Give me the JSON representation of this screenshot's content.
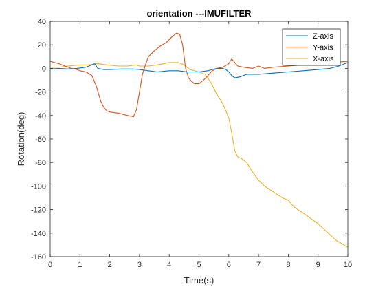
{
  "chart_data": {
    "type": "line",
    "title": "orientation ---IMUFILTER",
    "xlabel": "Time(s)",
    "ylabel": "Rotation(deg)",
    "xlim": [
      0,
      10
    ],
    "ylim": [
      -160,
      40
    ],
    "xticks": [
      0,
      1,
      2,
      3,
      4,
      5,
      6,
      7,
      8,
      9,
      10
    ],
    "yticks": [
      40,
      20,
      0,
      -20,
      -40,
      -60,
      -80,
      -100,
      -120,
      -140,
      -160
    ],
    "grid": false,
    "legend_position": "top-right",
    "series": [
      {
        "name": "Z-axis",
        "color": "#0072BD",
        "x": [
          0,
          0.3,
          0.6,
          0.9,
          1.2,
          1.4,
          1.5,
          1.6,
          1.8,
          2.0,
          2.4,
          2.8,
          3.0,
          3.3,
          3.6,
          4.0,
          4.3,
          4.6,
          5.0,
          5.3,
          5.6,
          5.8,
          5.9,
          6.0,
          6.1,
          6.2,
          6.4,
          6.6,
          7.0,
          7.5,
          8.0,
          8.5,
          9.0,
          9.4,
          9.7,
          10.0
        ],
        "y": [
          -0.5,
          0,
          -0.5,
          0,
          1,
          3,
          4,
          0,
          -1,
          -1,
          -0.5,
          -0.5,
          -1,
          -2,
          -3,
          -2,
          -2,
          -3,
          -3,
          -2,
          0,
          0,
          -1,
          -3,
          -6,
          -8,
          -7,
          -5,
          -5,
          -4,
          -3,
          -2,
          -1,
          0,
          2,
          5
        ]
      },
      {
        "name": "Y-axis",
        "color": "#D95319",
        "x": [
          0,
          0.3,
          0.5,
          0.7,
          0.9,
          1.0,
          1.2,
          1.4,
          1.55,
          1.7,
          1.8,
          1.9,
          2.0,
          2.3,
          2.6,
          2.8,
          2.9,
          3.0,
          3.1,
          3.2,
          3.3,
          3.5,
          3.7,
          3.9,
          4.1,
          4.25,
          4.35,
          4.45,
          4.55,
          4.65,
          4.75,
          4.85,
          5.0,
          5.15,
          5.3,
          5.45,
          5.6,
          5.8,
          6.0,
          6.1,
          6.2,
          6.3,
          6.5,
          6.8,
          7.0,
          7.2,
          7.5,
          8.0,
          8.5,
          9.0,
          9.5,
          10.0
        ],
        "y": [
          6,
          4,
          2,
          0,
          -1,
          -2,
          -3,
          -6,
          -15,
          -28,
          -33,
          -36,
          -37,
          -38,
          -40,
          -41,
          -35,
          -20,
          -5,
          3,
          10,
          15,
          19,
          22,
          27,
          30,
          29,
          20,
          0,
          -8,
          -11,
          -13,
          -13,
          -10,
          -6,
          -2,
          0,
          1,
          4,
          8,
          5,
          2,
          1,
          0,
          2,
          0,
          1,
          2,
          3,
          4,
          5,
          6
        ]
      },
      {
        "name": "X-axis",
        "color": "#EDB120",
        "x": [
          0,
          0.3,
          0.6,
          1.0,
          1.3,
          1.6,
          1.9,
          2.3,
          2.6,
          2.9,
          3.0,
          3.3,
          3.6,
          4.0,
          4.3,
          4.5,
          4.7,
          5.0,
          5.2,
          5.4,
          5.6,
          5.8,
          6.0,
          6.1,
          6.2,
          6.3,
          6.45,
          6.6,
          6.8,
          7.0,
          7.2,
          7.5,
          7.8,
          8.0,
          8.2,
          8.5,
          9.0,
          9.3,
          9.6,
          10.0
        ],
        "y": [
          1,
          1,
          2,
          3,
          3,
          4,
          3,
          2,
          2,
          3,
          2,
          2,
          3,
          5,
          5,
          3,
          -1,
          -3,
          -5,
          -12,
          -22,
          -30,
          -42,
          -55,
          -70,
          -75,
          -77,
          -80,
          -88,
          -95,
          -100,
          -105,
          -110,
          -112,
          -118,
          -123,
          -132,
          -139,
          -146,
          -152
        ]
      }
    ]
  }
}
